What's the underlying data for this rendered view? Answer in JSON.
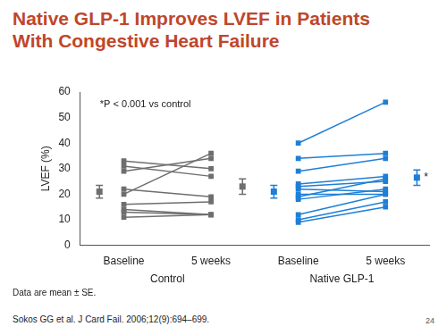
{
  "chart_data": {
    "type": "line",
    "title": "Native GLP-1 Improves LVEF in Patients With Congestive Heart Failure",
    "y_label": "LVEF (%)",
    "categories": [
      "Baseline",
      "5 weeks",
      "Baseline",
      "5 weeks"
    ],
    "ylim": [
      0,
      60
    ],
    "yticks": [
      0,
      10,
      20,
      30,
      40,
      50,
      60
    ],
    "grid": false,
    "annotation": "*P < 0.001 vs control",
    "note": "Data are mean ± SE.",
    "source": "Sokos GG et al. J Card Fail. 2006;12(9):694–699.",
    "page_number": "24",
    "series": [
      {
        "name": "Control",
        "color": "#6e6e6e",
        "marker": "square",
        "values": [
          [
            33,
            30
          ],
          [
            31,
            27
          ],
          [
            29,
            34
          ],
          [
            20,
            36
          ],
          [
            22,
            19
          ],
          [
            16,
            17
          ],
          [
            14,
            12
          ],
          [
            13,
            12
          ],
          [
            11,
            12
          ]
        ],
        "mean": [
          21,
          23
        ],
        "se": [
          2.5,
          3
        ]
      },
      {
        "name": "Native GLP-1",
        "color": "#1f7fd6",
        "marker": "square",
        "values": [
          [
            40,
            56
          ],
          [
            34,
            36
          ],
          [
            29,
            34
          ],
          [
            24,
            27
          ],
          [
            23,
            25
          ],
          [
            22,
            21
          ],
          [
            20,
            20
          ],
          [
            19,
            26
          ],
          [
            18,
            22
          ],
          [
            12,
            20
          ],
          [
            10,
            17
          ],
          [
            9,
            15
          ]
        ],
        "mean": [
          21,
          26.5
        ],
        "se": [
          2.5,
          3
        ],
        "significance": "*"
      }
    ]
  }
}
